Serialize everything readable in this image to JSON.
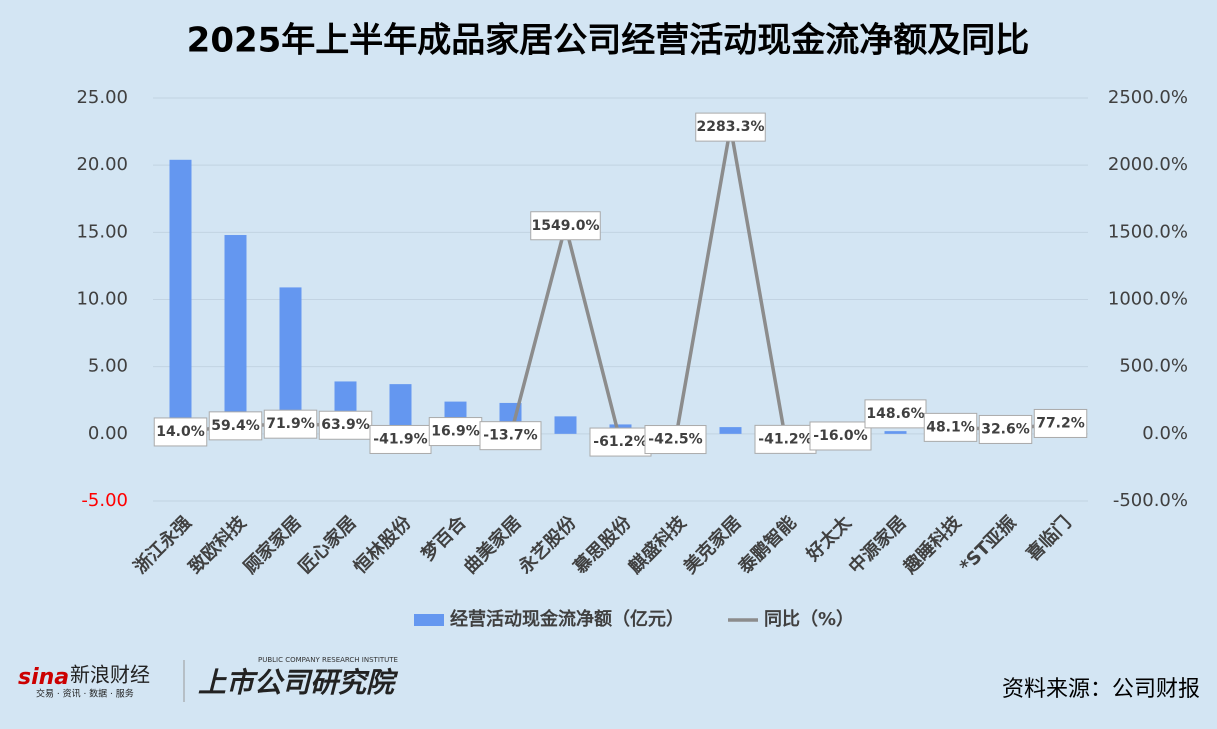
{
  "chart_data": {
    "type": "bar-line",
    "title": "2025年上半年成品家居公司经营活动现金流净额及同比",
    "categories": [
      "浙江永强",
      "致欧科技",
      "顾家家居",
      "匠心家居",
      "恒林股份",
      "梦百合",
      "曲美家居",
      "永艺股份",
      "慕思股份",
      "麒盛科技",
      "美克家居",
      "泰鹏智能",
      "好太太",
      "中源家居",
      "趣睡科技",
      "*ST亚振",
      "喜临门"
    ],
    "series": [
      {
        "name": "经营活动现金流净额（亿元）",
        "type": "bar",
        "color": "#6497f0",
        "negative_color": "#ff0000",
        "values": [
          20.4,
          14.8,
          10.9,
          3.9,
          3.7,
          2.4,
          2.3,
          1.3,
          0.7,
          0.05,
          0.5,
          0.05,
          0.05,
          0.2,
          0.1,
          0.05,
          -0.1
        ]
      },
      {
        "name": "同比（%）",
        "type": "line",
        "axis": "y2",
        "color": "#8c8c8c",
        "values": [
          14.0,
          59.4,
          71.9,
          63.9,
          -41.9,
          16.9,
          -13.7,
          1549.0,
          -61.2,
          -42.5,
          2283.3,
          -41.2,
          -16.0,
          148.6,
          48.1,
          32.6,
          77.2
        ],
        "value_labels": [
          "14.0%",
          "59.4%",
          "71.9%",
          "63.9%",
          "-41.9%",
          "16.9%",
          "-13.7%",
          "1549.0%",
          "-61.2%",
          "-42.5%",
          "2283.3%",
          "-41.2%",
          "-16.0%",
          "148.6%",
          "48.1%",
          "32.6%",
          "77.2%"
        ]
      }
    ],
    "ylim": [
      -5,
      25
    ],
    "yticks": [
      {
        "value": -5,
        "label": "-5.00"
      },
      {
        "value": 0,
        "label": "0.00"
      },
      {
        "value": 5,
        "label": "5.00"
      },
      {
        "value": 10,
        "label": "10.00"
      },
      {
        "value": 15,
        "label": "15.00"
      },
      {
        "value": 20,
        "label": "20.00"
      },
      {
        "value": 25,
        "label": "25.00"
      }
    ],
    "y2lim": [
      -500,
      2500
    ],
    "y2ticks": [
      {
        "value": -500,
        "label": "-500.0%"
      },
      {
        "value": 0,
        "label": "0.0%"
      },
      {
        "value": 500,
        "label": "500.0%"
      },
      {
        "value": 1000,
        "label": "1000.0%"
      },
      {
        "value": 1500,
        "label": "1500.0%"
      },
      {
        "value": 2000,
        "label": "2000.0%"
      },
      {
        "value": 2500,
        "label": "2500.0%"
      }
    ],
    "grid": true,
    "legend": "bottom"
  },
  "footer": {
    "brand": "新浪财经",
    "brand_sub": "交易 · 资讯 · 数据 · 服务",
    "institute": "上市公司研究院",
    "institute_en": "PUBLIC COMPANY RESEARCH INSTITUTE",
    "source": "资料来源：公司财报"
  }
}
